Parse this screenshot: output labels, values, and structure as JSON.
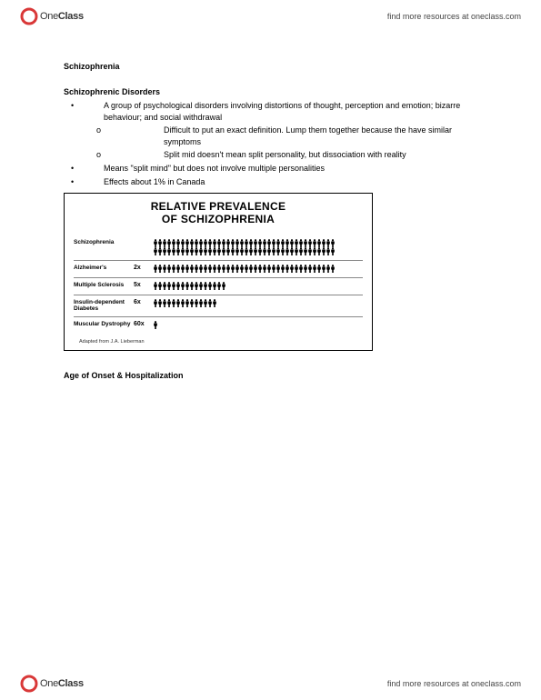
{
  "header": {
    "logo_one": "One",
    "logo_class": "Class",
    "link_text": "find more resources at oneclass.com"
  },
  "footer": {
    "logo_one": "One",
    "logo_class": "Class",
    "link_text": "find more resources at oneclass.com"
  },
  "doc": {
    "title": "Schizophrenia",
    "section_heading": "Schizophrenic Disorders",
    "bullets": [
      "A group of psychological disorders involving distortions of thought, perception and emotion; bizarre behaviour; and social withdrawal",
      "Means \"split mind\" but does not involve multiple personalities",
      "Effects about 1% in Canada"
    ],
    "sub_bullets": [
      "Difficult to put an exact definition. Lump them together because the have similar symptoms",
      "Split mid doesn't mean split personality, but  dissociation with reality"
    ],
    "age_heading": "Age of Onset & Hospitalization"
  },
  "chart": {
    "type": "pictogram",
    "title_line1": "RELATIVE PREVALENCE",
    "title_line2": "OF SCHIZOPHRENIA",
    "icon_color": "#000000",
    "border_color": "#000000",
    "background_color": "#ffffff",
    "divider_color": "#888888",
    "label_fontsize": 6.5,
    "mult_fontsize": 7,
    "title_fontsize": 12,
    "rows": [
      {
        "label": "Schizophrenia",
        "multiplier": "",
        "count": 80,
        "icons_per_row": 40
      },
      {
        "label": "Alzheimer's",
        "multiplier": "2x",
        "count": 40,
        "icons_per_row": 40
      },
      {
        "label": "Multiple Sclerosis",
        "multiplier": "5x",
        "count": 16,
        "icons_per_row": 40
      },
      {
        "label": "Insulin-dependent Diabetes",
        "multiplier": "6x",
        "count": 14,
        "icons_per_row": 40
      },
      {
        "label": "Muscular Dystrophy",
        "multiplier": "60x",
        "count": 1,
        "icons_per_row": 40
      }
    ],
    "footer": "Adapted from J.A. Lieberman"
  },
  "logo_colors": {
    "ring": "#d93838",
    "inner": "#ffffff"
  }
}
